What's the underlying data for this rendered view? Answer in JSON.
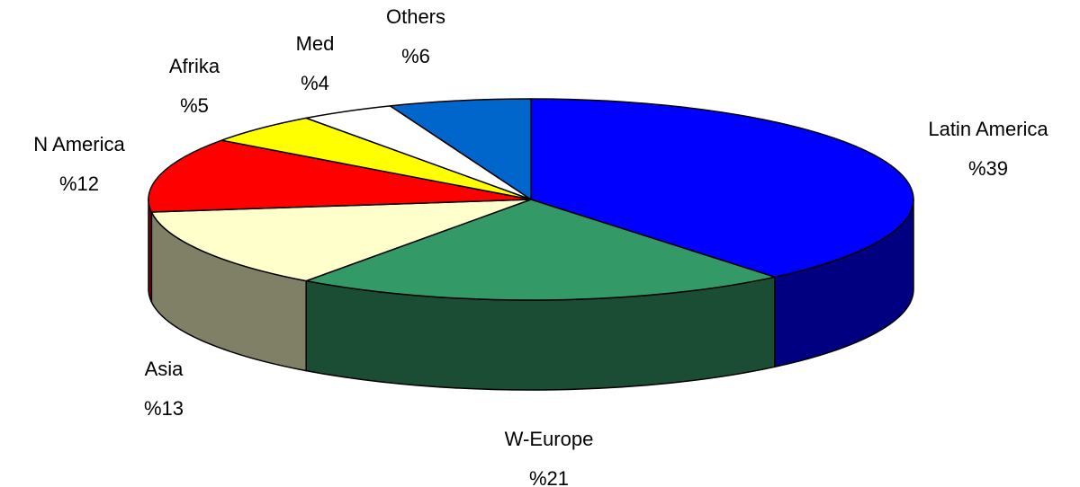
{
  "chart_data": {
    "type": "pie",
    "categories": [
      "Latin America",
      "W-Europe",
      "Asia",
      "N America",
      "Afrika",
      "Med",
      "Others"
    ],
    "values": [
      39,
      21,
      13,
      12,
      5,
      4,
      6
    ],
    "value_labels": [
      "%39",
      "%21",
      "%13",
      "%12",
      "%5",
      "%4",
      "%6"
    ],
    "colors": [
      "#0000FF",
      "#339966",
      "#FFFFCC",
      "#FF0000",
      "#FFFF00",
      "#FFFFFF",
      "#0066CC"
    ]
  }
}
